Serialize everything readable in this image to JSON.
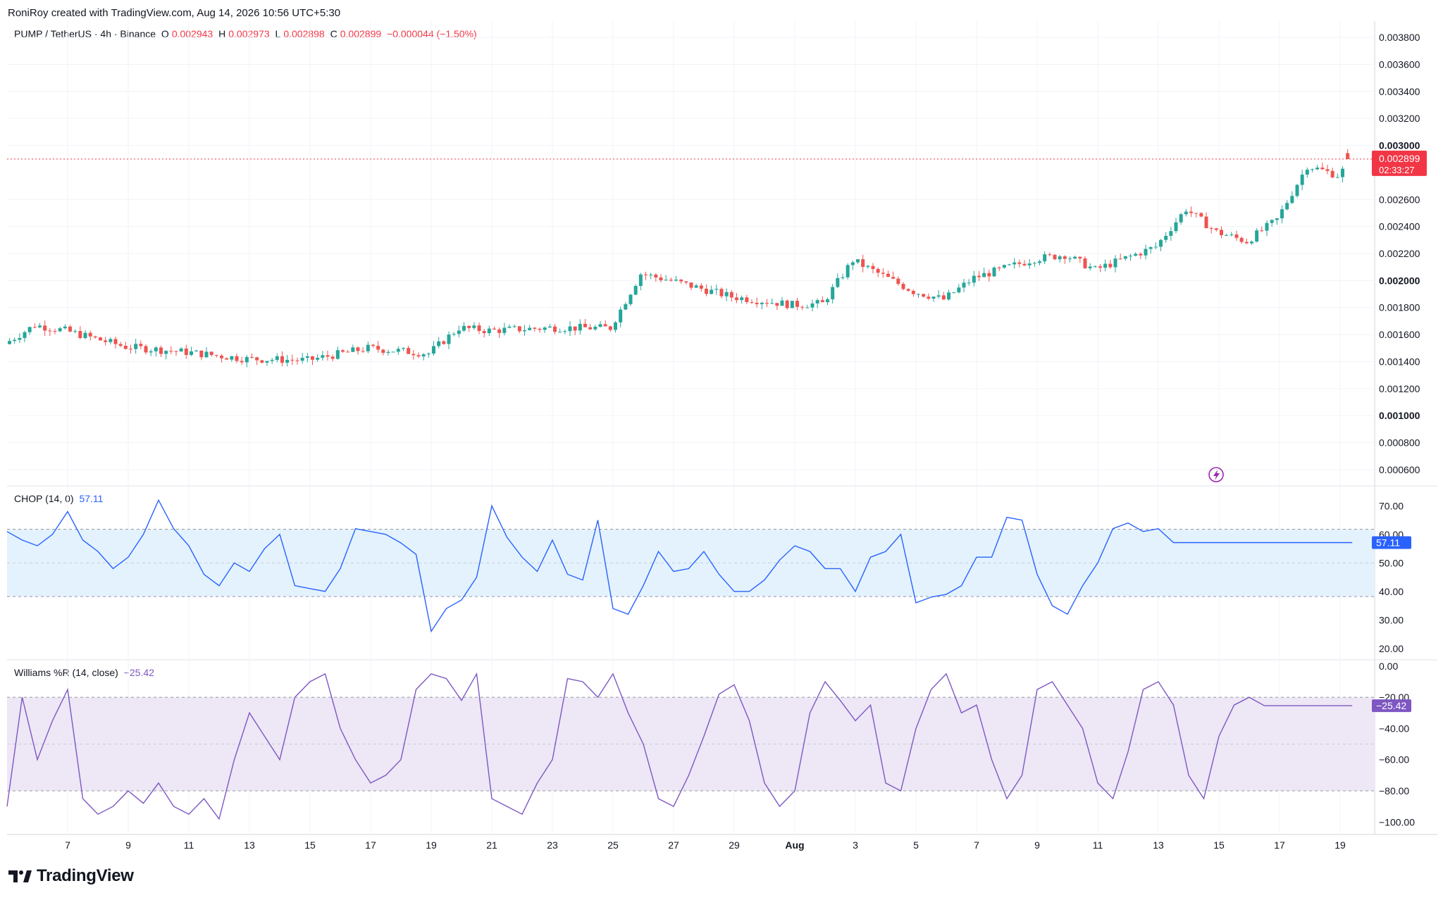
{
  "attribution": "RoniRoy created with TradingView.com, Aug 14, 2026 10:56 UTC+5:30",
  "brand": "TradingView",
  "colors": {
    "up": "#26a69a",
    "down": "#ef5350",
    "chop_line": "#2962ff",
    "wr_line": "#7e57c2",
    "chop_band": "#e3f2fd",
    "wr_band": "#ede7f6",
    "price_tag": "#f23645"
  },
  "legend": {
    "symbol": "PUMP / TetherUS · 4h · Binance",
    "o_label": "O",
    "o_value": "0.002943",
    "h_label": "H",
    "h_value": "0.002973",
    "l_label": "L",
    "l_value": "0.002898",
    "c_label": "C",
    "c_value": "0.002899",
    "change": "−0.000044 (−1.50%)"
  },
  "price_tag": {
    "value": "0.002899",
    "countdown": "02:33:27"
  },
  "chop_legend": {
    "label": "CHOP (14, 0)",
    "value": "57.11"
  },
  "wr_legend": {
    "label": "Williams %R (14, close)",
    "value": "−25.42"
  },
  "chart_data": [
    {
      "type": "candlestick",
      "title": "PUMP / TetherUS · 4h · Binance",
      "y_axis": {
        "ticks": [
          "0.003800",
          "0.003600",
          "0.003400",
          "0.003200",
          "0.003000",
          "0.002600",
          "0.002400",
          "0.002200",
          "0.002000",
          "0.001800",
          "0.001600",
          "0.001400",
          "0.001200",
          "0.001000",
          "0.000800",
          "0.000600"
        ],
        "ylim": [
          0.00048,
          0.00392
        ]
      },
      "x_axis": {
        "ticks": [
          "7",
          "9",
          "11",
          "13",
          "15",
          "17",
          "19",
          "21",
          "23",
          "25",
          "27",
          "29",
          "Aug",
          "3",
          "5",
          "7",
          "9",
          "11",
          "13",
          "15",
          "17",
          "19"
        ]
      },
      "last": {
        "open": 0.002943,
        "high": 0.002973,
        "low": 0.002898,
        "close": 0.002899
      },
      "close_path_days": [
        0,
        1,
        2,
        4,
        6,
        8,
        10,
        12,
        14,
        15,
        16,
        18,
        20,
        21,
        22,
        24,
        26,
        27,
        28,
        30,
        31,
        32,
        34,
        35,
        36,
        38,
        39,
        40,
        41,
        42,
        43,
        44,
        44.5
      ],
      "close_path_values": [
        0.00153,
        0.00167,
        0.00163,
        0.00151,
        0.00147,
        0.00142,
        0.00141,
        0.0015,
        0.00146,
        0.00165,
        0.00163,
        0.00165,
        0.00165,
        0.00205,
        0.002,
        0.00188,
        0.00182,
        0.00183,
        0.00215,
        0.00192,
        0.00186,
        0.00202,
        0.00216,
        0.00219,
        0.00208,
        0.00225,
        0.00253,
        0.00236,
        0.00229,
        0.00245,
        0.00285,
        0.00278,
        0.00288
      ]
    },
    {
      "type": "line",
      "title": "CHOP (14, 0)",
      "y_axis": {
        "ticks": [
          "70.00",
          "60.00",
          "50.00",
          "40.00",
          "30.00",
          "20.00"
        ],
        "ylim": [
          16,
          77
        ]
      },
      "band": {
        "upper": 61.8,
        "middle": 50,
        "lower": 38.2
      },
      "last": 57.11,
      "x_days": [
        0,
        0.5,
        1,
        1.5,
        2,
        2.5,
        3,
        3.5,
        4,
        4.5,
        5,
        5.5,
        6,
        6.5,
        7,
        7.5,
        8,
        8.5,
        9,
        9.5,
        10,
        10.5,
        11,
        11.5,
        12,
        12.5,
        13,
        13.5,
        14,
        14.5,
        15,
        15.5,
        16,
        16.5,
        17,
        17.5,
        18,
        18.5,
        19,
        19.5,
        20,
        20.5,
        21,
        21.5,
        22,
        22.5,
        23,
        23.5,
        24,
        24.5,
        25,
        25.5,
        26,
        26.5,
        27,
        27.5,
        28,
        28.5,
        29,
        29.5,
        30,
        30.5,
        31,
        31.5,
        32,
        32.5,
        33,
        33.5,
        34,
        34.5,
        35,
        35.5,
        36,
        36.5,
        37,
        37.5,
        38,
        38.5,
        39,
        39.5,
        40,
        40.5,
        41,
        41.5,
        42,
        42.5,
        43,
        43.5,
        44,
        44.4
      ],
      "values": [
        61,
        58,
        56,
        60,
        68,
        58,
        54,
        48,
        52,
        60,
        72,
        62,
        56,
        46,
        42,
        50,
        47,
        55,
        60,
        42,
        41,
        40,
        48,
        62,
        61,
        60,
        57,
        53,
        26,
        34,
        37,
        45,
        70,
        59,
        52,
        47,
        58,
        46,
        44,
        65,
        34,
        32,
        42,
        54,
        47,
        48,
        54,
        46,
        40,
        40,
        44,
        51,
        56,
        54,
        48,
        48,
        40,
        52,
        54,
        60,
        36,
        38,
        39,
        42,
        52,
        52,
        66,
        65,
        46,
        35,
        32,
        42,
        50,
        62,
        64,
        61,
        62,
        57.11,
        57.11,
        57.11,
        57.11,
        57.11,
        57.11,
        57.11,
        57.11,
        57.11,
        57.11,
        57.11,
        57.11,
        57.11
      ]
    },
    {
      "type": "line",
      "title": "Williams %R (14, close)",
      "y_axis": {
        "ticks": [
          "0.00",
          "−20.00",
          "−40.00",
          "−60.00",
          "−80.00",
          "−100.00"
        ],
        "ylim": [
          -108,
          4
        ]
      },
      "band": {
        "upper": -20,
        "middle": -50,
        "lower": -80
      },
      "last": -25.42,
      "x_days": [
        0,
        0.5,
        1,
        1.5,
        2,
        2.5,
        3,
        3.5,
        4,
        4.5,
        5,
        5.5,
        6,
        6.5,
        7,
        7.5,
        8,
        8.5,
        9,
        9.5,
        10,
        10.5,
        11,
        11.5,
        12,
        12.5,
        13,
        13.5,
        14,
        14.5,
        15,
        15.5,
        16,
        16.5,
        17,
        17.5,
        18,
        18.5,
        19,
        19.5,
        20,
        20.5,
        21,
        21.5,
        22,
        22.5,
        23,
        23.5,
        24,
        24.5,
        25,
        25.5,
        26,
        26.5,
        27,
        27.5,
        28,
        28.5,
        29,
        29.5,
        30,
        30.5,
        31,
        31.5,
        32,
        32.5,
        33,
        33.5,
        34,
        34.5,
        35,
        35.5,
        36,
        36.5,
        37,
        37.5,
        38,
        38.5,
        39,
        39.5,
        40,
        40.5,
        41,
        41.5,
        42,
        42.5,
        43,
        43.5,
        44,
        44.4
      ],
      "values": [
        -90,
        -20,
        -60,
        -35,
        -15,
        -85,
        -95,
        -90,
        -80,
        -88,
        -75,
        -90,
        -95,
        -85,
        -98,
        -60,
        -30,
        -45,
        -60,
        -20,
        -10,
        -5,
        -40,
        -60,
        -75,
        -70,
        -60,
        -15,
        -5,
        -8,
        -22,
        -5,
        -85,
        -90,
        -95,
        -75,
        -60,
        -8,
        -10,
        -20,
        -5,
        -30,
        -50,
        -85,
        -90,
        -70,
        -45,
        -18,
        -12,
        -35,
        -75,
        -90,
        -80,
        -30,
        -10,
        -22,
        -35,
        -25,
        -75,
        -80,
        -40,
        -15,
        -5,
        -30,
        -25,
        -60,
        -85,
        -70,
        -15,
        -10,
        -25,
        -40,
        -75,
        -85,
        -55,
        -15,
        -10,
        -25,
        -70,
        -85,
        -45,
        -25,
        -20,
        -25.42,
        -25.42,
        -25.42,
        -25.42,
        -25.42,
        -25.42,
        -25.42
      ]
    }
  ]
}
